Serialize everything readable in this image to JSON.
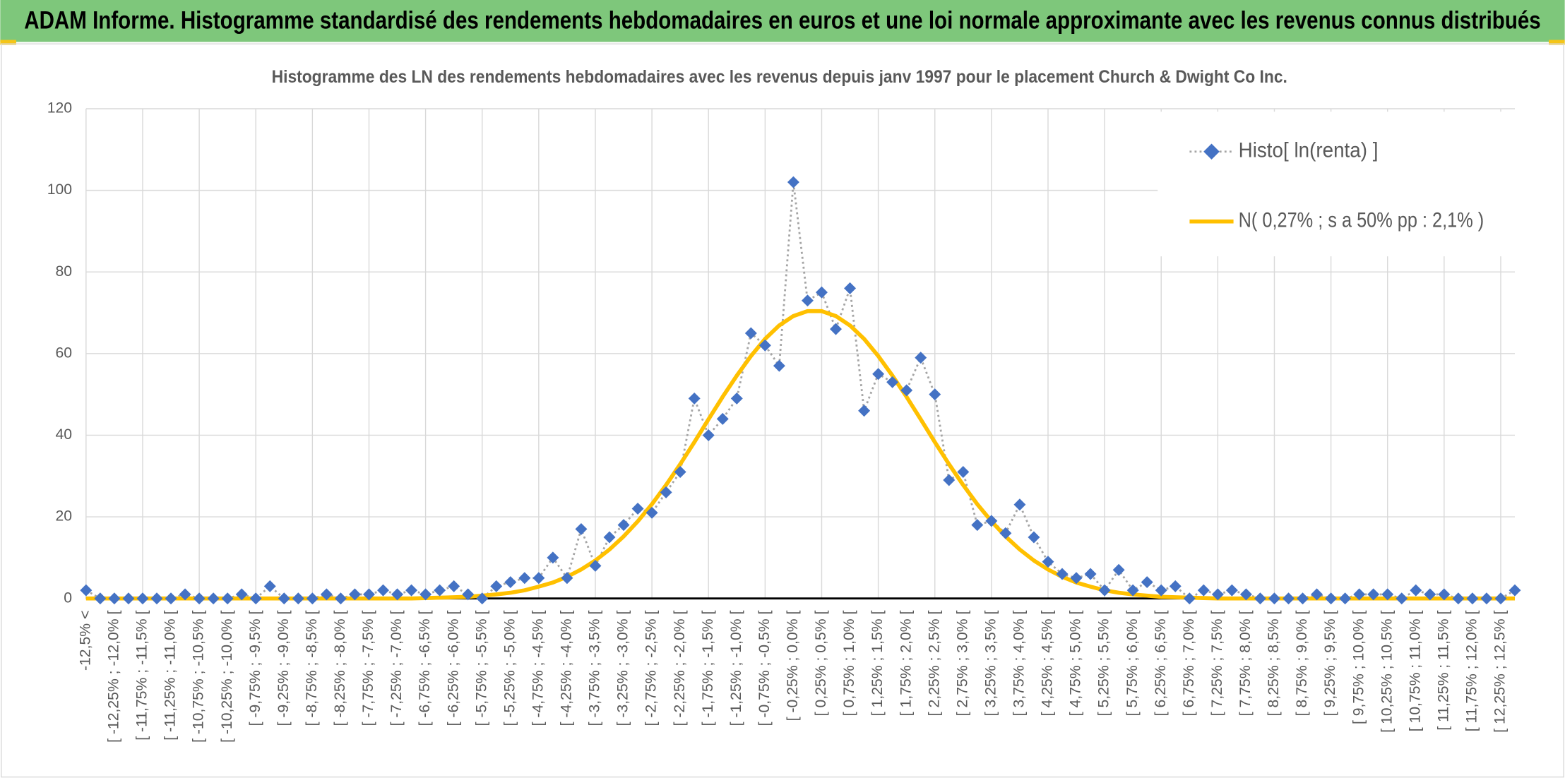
{
  "chart_data": {
    "type": "line",
    "title": "ADAM Informe. Histogramme standardisé des rendements hebdomadaires en euros et une loi normale approximante avec les revenus connus distribués",
    "subtitle": "Histogramme des LN des rendements hebdomadaires avec les revenus depuis janv 1997 pour le placement Church & Dwight Co Inc.",
    "categories": [
      "-12,5% <",
      null,
      "[ -12,25% ; -12,0% [",
      null,
      "[ -11,75% ; -11,5% [",
      null,
      "[ -11,25% ; -11,0% [",
      null,
      "[ -10,75% ; -10,5% [",
      null,
      "[ -10,25% ; -10,0% [",
      null,
      "[ -9,75% ; -9,5% [",
      null,
      "[ -9,25% ; -9,0% [",
      null,
      "[ -8,75% ; -8,5% [",
      null,
      "[ -8,25% ; -8,0% [",
      null,
      "[ -7,75% ; -7,5% [",
      null,
      "[ -7,25% ; -7,0% [",
      null,
      "[ -6,75% ; -6,5% [",
      null,
      "[ -6,25% ; -6,0% [",
      null,
      "[ -5,75% ; -5,5% [",
      null,
      "[ -5,25% ; -5,0% [",
      null,
      "[ -4,75% ; -4,5% [",
      null,
      "[ -4,25% ; -4,0% [",
      null,
      "[ -3,75% ; -3,5% [",
      null,
      "[ -3,25% ; -3,0% [",
      null,
      "[ -2,75% ; -2,5% [",
      null,
      "[ -2,25% ; -2,0% [",
      null,
      "[ -1,75% ; -1,5% [",
      null,
      "[ -1,25% ; -1,0% [",
      null,
      "[ -0,75% ; -0,5% [",
      null,
      "[ -0,25% ; 0,0% [",
      null,
      "[ 0,25% ; 0,5% [",
      null,
      "[ 0,75% ; 1,0% [",
      null,
      "[ 1,25% ; 1,5% [",
      null,
      "[ 1,75% ; 2,0% [",
      null,
      "[ 2,25% ; 2,5% [",
      null,
      "[ 2,75% ; 3,0% [",
      null,
      "[ 3,25% ; 3,5% [",
      null,
      "[ 3,75% ; 4,0% [",
      null,
      "[ 4,25% ; 4,5% [",
      null,
      "[ 4,75% ; 5,0% [",
      null,
      "[ 5,25% ; 5,5% [",
      null,
      "[ 5,75% ; 6,0% [",
      null,
      "[ 6,25% ; 6,5% [",
      null,
      "[ 6,75% ; 7,0% [",
      null,
      "[ 7,25% ; 7,5% [",
      null,
      "[ 7,75% ; 8,0% [",
      null,
      "[ 8,25% ; 8,5% [",
      null,
      "[ 8,75% ; 9,0% [",
      null,
      "[ 9,25% ; 9,5% [",
      null,
      "[ 9,75% ; 10,0% [",
      null,
      "[ 10,25% ; 10,5% [",
      null,
      "[ 10,75% ; 11,0% [",
      null,
      "[ 11,25% ; 11,5% [",
      null,
      "[ 11,75% ; 12,0% [",
      null,
      "[ 12,25% ; 12,5% [",
      null
    ],
    "series": [
      {
        "name": "Histo[ ln(renta) ]",
        "color": "#4472c4",
        "line_color": "#a5a5a5",
        "values": [
          2,
          0,
          0,
          0,
          0,
          0,
          0,
          1,
          0,
          0,
          0,
          1,
          0,
          3,
          0,
          0,
          0,
          1,
          0,
          1,
          1,
          2,
          1,
          2,
          1,
          2,
          3,
          1,
          0,
          3,
          4,
          5,
          5,
          10,
          5,
          17,
          8,
          15,
          18,
          22,
          21,
          26,
          31,
          49,
          40,
          44,
          49,
          65,
          62,
          57,
          102,
          73,
          75,
          66,
          76,
          46,
          55,
          53,
          51,
          59,
          50,
          29,
          31,
          18,
          19,
          16,
          23,
          15,
          9,
          6,
          5,
          6,
          2,
          7,
          2,
          4,
          2,
          3,
          0,
          2,
          1,
          2,
          1,
          0,
          0,
          0,
          0,
          1,
          0,
          0,
          1,
          1,
          1,
          0,
          2,
          1,
          1,
          0,
          0,
          0,
          0,
          2
        ]
      },
      {
        "name": "N( 0,27% ; s a 50% pp : 2,1% )",
        "color": "#ffc000",
        "values": [
          0,
          0,
          0,
          0,
          0,
          0,
          0,
          0,
          0,
          0,
          0,
          0,
          0,
          0,
          0,
          0,
          0,
          0,
          0,
          0,
          0,
          0,
          0,
          0,
          0.1,
          0.2,
          0.3,
          0.4,
          0.7,
          1.0,
          1.4,
          2.0,
          2.9,
          3.9,
          5.3,
          7.1,
          9.3,
          12.0,
          15.2,
          18.9,
          23.1,
          27.8,
          32.9,
          38.3,
          43.9,
          49.4,
          54.6,
          59.4,
          63.6,
          66.9,
          69.2,
          70.4,
          70.4,
          69.2,
          66.9,
          63.6,
          59.4,
          54.6,
          49.4,
          43.9,
          38.3,
          32.9,
          27.8,
          23.1,
          18.9,
          15.2,
          12.0,
          9.3,
          7.1,
          5.3,
          3.9,
          2.9,
          2.0,
          1.4,
          1.0,
          0.7,
          0.4,
          0.3,
          0.2,
          0.1,
          0,
          0,
          0,
          0,
          0,
          0,
          0,
          0,
          0,
          0,
          0,
          0,
          0,
          0,
          0,
          0,
          0,
          0,
          0,
          0,
          0,
          0
        ]
      }
    ],
    "ylim": [
      0,
      120
    ],
    "yticks": [
      0,
      20,
      40,
      60,
      80,
      100,
      120
    ],
    "grid": true,
    "legend": "top-right"
  }
}
